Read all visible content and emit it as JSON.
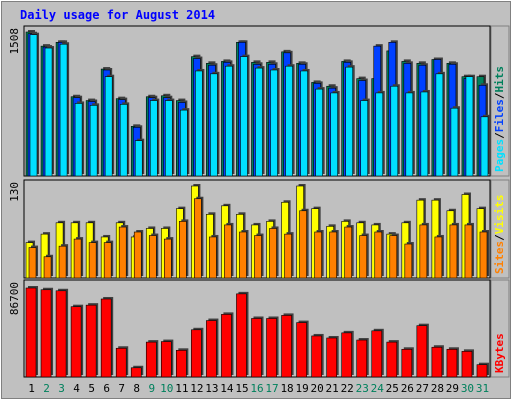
{
  "title": "Daily usage for August 2014",
  "colors": {
    "background": "#c0c0c0",
    "plot": "#c0c0c0",
    "title": "#0000ff",
    "hits": "#00805c",
    "files": "#0040ff",
    "pages": "#00e0ff",
    "visits": "#ffff00",
    "sites": "#ff8000",
    "kbytes": "#ff0000",
    "weekend": "#00805c",
    "weekday": "#000000"
  },
  "chart_data": [
    {
      "type": "bar",
      "title": "Daily usage for August 2014",
      "ymax_label": "1508",
      "legend": [
        "Pages",
        "Files",
        "Hits"
      ],
      "ylim": [
        0,
        1508
      ],
      "categories": [
        "1",
        "2",
        "3",
        "4",
        "5",
        "6",
        "7",
        "8",
        "9",
        "10",
        "11",
        "12",
        "13",
        "14",
        "15",
        "16",
        "17",
        "18",
        "19",
        "20",
        "21",
        "22",
        "23",
        "24",
        "25",
        "26",
        "27",
        "28",
        "29",
        "30",
        "31"
      ],
      "weekend": [
        false,
        true,
        true,
        false,
        false,
        false,
        false,
        false,
        true,
        true,
        false,
        false,
        false,
        false,
        false,
        true,
        true,
        false,
        false,
        false,
        false,
        false,
        true,
        true,
        false,
        false,
        false,
        false,
        false,
        true,
        true
      ],
      "series": [
        {
          "name": "Hits",
          "values": [
            1508,
            1360,
            1400,
            830,
            790,
            1120,
            810,
            520,
            830,
            840,
            790,
            1250,
            1180,
            1200,
            1400,
            1190,
            1190,
            1300,
            1180,
            980,
            940,
            1200,
            1020,
            1020,
            1310,
            1200,
            1180,
            1220,
            1180,
            1040,
            1040
          ]
        },
        {
          "name": "Files",
          "values": [
            1490,
            1350,
            1400,
            820,
            780,
            1110,
            800,
            510,
            820,
            820,
            770,
            1230,
            1160,
            1190,
            1400,
            1170,
            1170,
            1290,
            1170,
            970,
            920,
            1190,
            1000,
            1360,
            1400,
            1180,
            1160,
            1220,
            1170,
            1020,
            950
          ]
        },
        {
          "name": "Pages",
          "values": [
            1480,
            1340,
            1380,
            760,
            740,
            1040,
            750,
            370,
            790,
            790,
            690,
            1100,
            1070,
            1150,
            1250,
            1130,
            1110,
            1150,
            1100,
            910,
            870,
            1140,
            790,
            870,
            940,
            870,
            880,
            1070,
            710,
            1040,
            620
          ]
        }
      ]
    },
    {
      "type": "bar",
      "ymax_label": "130",
      "legend": [
        "Sites",
        "Visits"
      ],
      "ylim": [
        0,
        130
      ],
      "categories": [
        "1",
        "2",
        "3",
        "4",
        "5",
        "6",
        "7",
        "8",
        "9",
        "10",
        "11",
        "12",
        "13",
        "14",
        "15",
        "16",
        "17",
        "18",
        "19",
        "20",
        "21",
        "22",
        "23",
        "24",
        "25",
        "26",
        "27",
        "28",
        "29",
        "30",
        "31"
      ],
      "series": [
        {
          "name": "Visits",
          "values": [
            50,
            62,
            78,
            78,
            78,
            58,
            78,
            58,
            70,
            70,
            98,
            130,
            90,
            102,
            90,
            75,
            80,
            107,
            130,
            98,
            73,
            80,
            78,
            75,
            62,
            78,
            110,
            110,
            95,
            118,
            98
          ]
        },
        {
          "name": "Sites",
          "values": [
            43,
            30,
            45,
            55,
            50,
            50,
            72,
            65,
            60,
            55,
            80,
            112,
            58,
            75,
            65,
            60,
            70,
            62,
            95,
            65,
            65,
            72,
            60,
            65,
            60,
            48,
            75,
            58,
            75,
            75,
            65
          ]
        }
      ]
    },
    {
      "type": "bar",
      "ymax_label": "86700",
      "legend": [
        "KBytes"
      ],
      "ylim": [
        0,
        86700
      ],
      "categories": [
        "1",
        "2",
        "3",
        "4",
        "5",
        "6",
        "7",
        "8",
        "9",
        "10",
        "11",
        "12",
        "13",
        "14",
        "15",
        "16",
        "17",
        "18",
        "19",
        "20",
        "21",
        "22",
        "23",
        "24",
        "25",
        "26",
        "27",
        "28",
        "29",
        "30",
        "31"
      ],
      "series": [
        {
          "name": "KBytes",
          "values": [
            86700,
            85000,
            84000,
            68500,
            70000,
            76000,
            28000,
            9000,
            34000,
            34500,
            26000,
            46000,
            55000,
            61000,
            81000,
            57000,
            57000,
            60000,
            53000,
            40000,
            38000,
            43000,
            36000,
            45000,
            34000,
            27000,
            50000,
            29000,
            27000,
            25000,
            12000
          ]
        }
      ]
    }
  ]
}
